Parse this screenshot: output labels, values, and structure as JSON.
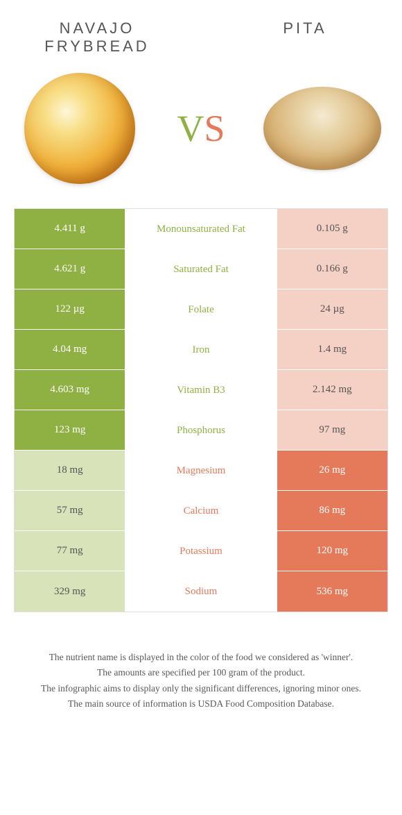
{
  "header": {
    "left_title": "NAVAJO FRYBREAD",
    "right_title": "PITA",
    "vs_v": "V",
    "vs_s": "S"
  },
  "colors": {
    "green": "#8fb042",
    "green_light": "#d8e3ba",
    "orange": "#e57a5a",
    "orange_light": "#f5d0c4",
    "text": "#555555",
    "white": "#ffffff"
  },
  "table": {
    "rows": [
      {
        "left": "4.411 g",
        "label": "Monounsaturated Fat",
        "right": "0.105 g",
        "winner": "left"
      },
      {
        "left": "4.621 g",
        "label": "Saturated Fat",
        "right": "0.166 g",
        "winner": "left"
      },
      {
        "left": "122 µg",
        "label": "Folate",
        "right": "24 µg",
        "winner": "left"
      },
      {
        "left": "4.04 mg",
        "label": "Iron",
        "right": "1.4 mg",
        "winner": "left"
      },
      {
        "left": "4.603 mg",
        "label": "Vitamin B3",
        "right": "2.142 mg",
        "winner": "left"
      },
      {
        "left": "123 mg",
        "label": "Phosphorus",
        "right": "97 mg",
        "winner": "left"
      },
      {
        "left": "18 mg",
        "label": "Magnesium",
        "right": "26 mg",
        "winner": "right"
      },
      {
        "left": "57 mg",
        "label": "Calcium",
        "right": "86 mg",
        "winner": "right"
      },
      {
        "left": "77 mg",
        "label": "Potassium",
        "right": "120 mg",
        "winner": "right"
      },
      {
        "left": "329 mg",
        "label": "Sodium",
        "right": "536 mg",
        "winner": "right"
      }
    ]
  },
  "footer": {
    "lines": [
      "The nutrient name is displayed in the color of the food we considered as 'winner'.",
      "The amounts are specified per 100 gram of the product.",
      "The infographic aims to display only the significant differences, ignoring minor ones.",
      "The main source of information is USDA Food Composition Database."
    ]
  }
}
